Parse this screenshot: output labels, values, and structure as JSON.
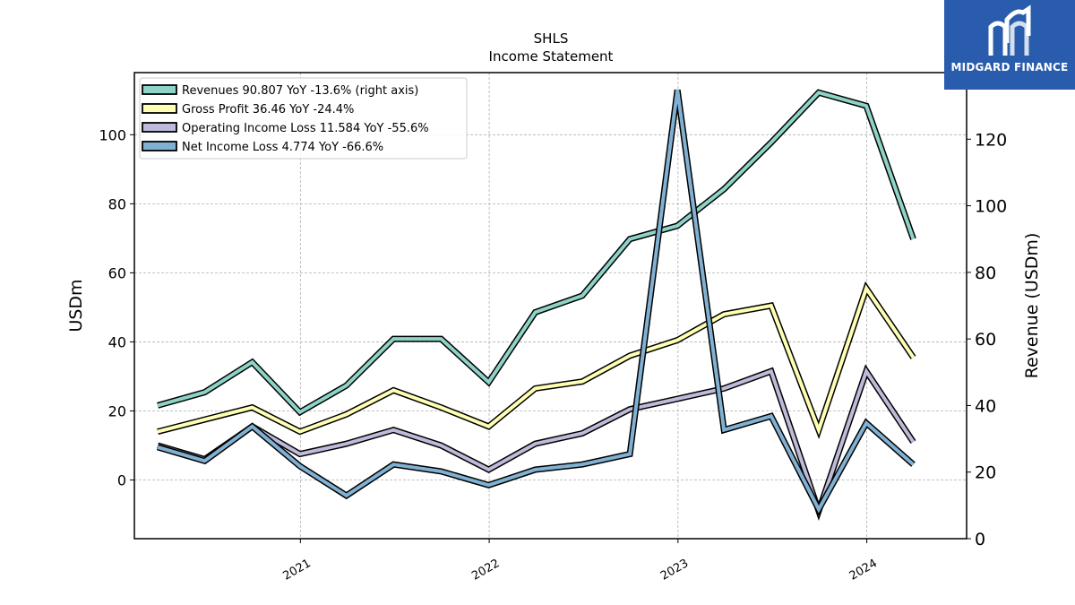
{
  "brand": {
    "logo_text": "MIDGARD FINANCE",
    "logo_color": "#2a5cad"
  },
  "chart_data": {
    "type": "line",
    "title": "SHLS",
    "subtitle": "Income Statement",
    "ylabel": "USDm",
    "y2label": "Revenue (USDm)",
    "ylim": [
      -17,
      118
    ],
    "y2lim": [
      0,
      140
    ],
    "yticks": [
      0,
      20,
      40,
      60,
      80,
      100
    ],
    "y2ticks": [
      0,
      20,
      40,
      60,
      80,
      100,
      120
    ],
    "xlim": [
      "2020-02-15",
      "2024-07-12"
    ],
    "xticks": [
      {
        "date": "2021-01-01",
        "label": "2021"
      },
      {
        "date": "2022-01-01",
        "label": "2022"
      },
      {
        "date": "2023-01-01",
        "label": "2023"
      },
      {
        "date": "2024-01-01",
        "label": "2024"
      }
    ],
    "grid": true,
    "legend_position": "top-left",
    "x": [
      "2020-03-31",
      "2020-06-30",
      "2020-09-30",
      "2020-12-31",
      "2021-03-31",
      "2021-06-30",
      "2021-09-30",
      "2021-12-31",
      "2022-03-31",
      "2022-06-30",
      "2022-09-30",
      "2022-12-31",
      "2023-03-31",
      "2023-06-30",
      "2023-09-30",
      "2023-12-31",
      "2024-03-31"
    ],
    "series": [
      {
        "name": "Revenues",
        "legend": "Revenues  90.807 YoY -13.6% (right axis)",
        "axis": "right",
        "color": "#8dd3c7",
        "values": [
          40,
          44,
          53,
          38,
          46,
          60,
          60,
          47,
          68,
          73,
          90,
          94,
          105,
          119,
          134,
          130,
          90
        ]
      },
      {
        "name": "Gross Profit",
        "legend": "Gross Profit  36.46 YoY -24.4%",
        "axis": "left",
        "color": "#ffffb3",
        "values": [
          14,
          17.5,
          21,
          14,
          19,
          26,
          21,
          15.5,
          26.5,
          28.5,
          36,
          40.5,
          48,
          50.5,
          14.5,
          55.5,
          35.5
        ]
      },
      {
        "name": "Operating Income Loss",
        "legend": "Operating Income Loss  11.584 YoY -55.6%",
        "axis": "left",
        "color": "#bebada",
        "values": [
          10,
          6,
          15.5,
          7.5,
          10.5,
          14.5,
          10,
          3,
          10.5,
          13.5,
          20.5,
          23.5,
          26.5,
          31.5,
          -9,
          31.5,
          11
        ]
      },
      {
        "name": "Net Income Loss",
        "legend": "Net Income Loss  4.774 YoY -66.6%",
        "axis": "left",
        "color": "#80b1d3",
        "values": [
          9.5,
          5.5,
          15.5,
          4,
          -4.5,
          4.5,
          2.5,
          -1.5,
          3,
          4.5,
          7.5,
          113,
          14.5,
          18.5,
          -8.5,
          16.5,
          4.5
        ]
      }
    ]
  }
}
